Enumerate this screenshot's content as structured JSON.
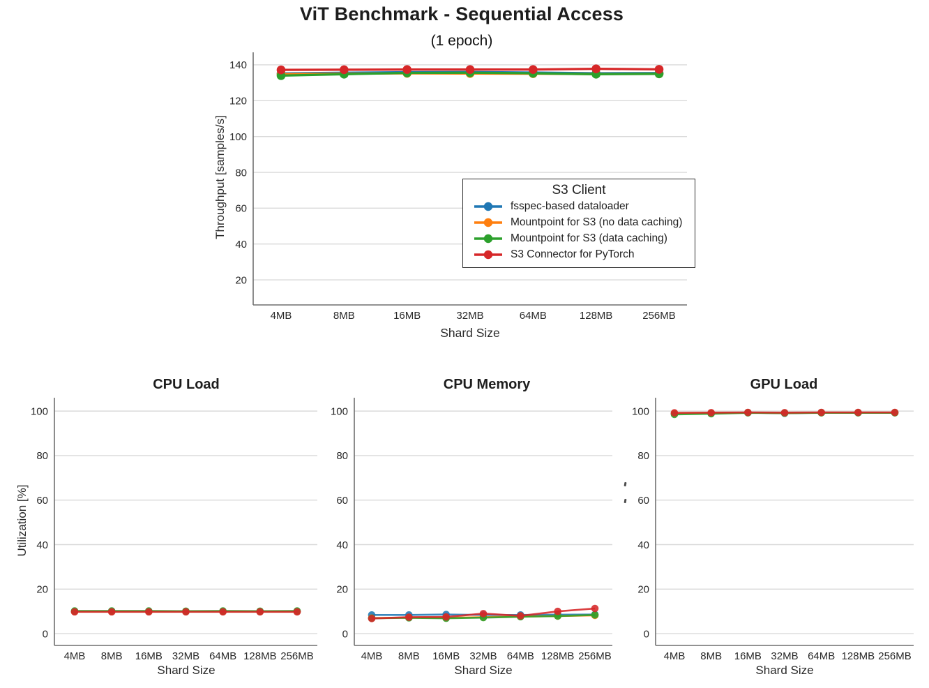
{
  "colors": {
    "blue": "#1f77b4",
    "orange": "#ff7f0e",
    "green": "#2ca02c",
    "red": "#d62728",
    "grid": "#d9d9d9",
    "spine": "#6f6f6f",
    "tick_text": "#2a2a2a"
  },
  "legend": {
    "title": "S3 Client"
  },
  "chart_data": [
    {
      "id": "throughput",
      "type": "line",
      "title": "ViT Benchmark - Sequential Access",
      "subtitle": "(1 epoch)",
      "categories": [
        "4MB",
        "8MB",
        "16MB",
        "32MB",
        "64MB",
        "128MB",
        "256MB"
      ],
      "xlabel": "Shard Size",
      "ylabel": "Throughput [samples/s]",
      "ylim": [
        6,
        147
      ],
      "yticks": [
        20,
        40,
        60,
        80,
        100,
        120,
        140
      ],
      "grid": true,
      "legend_position": "center-right",
      "series": [
        {
          "name": "fsspec-based dataloader",
          "color": "#1f77b4",
          "values": [
            135.2,
            135.6,
            135.9,
            136.0,
            135.7,
            135.3,
            135.4
          ]
        },
        {
          "name": "Mountpoint for S3 (no data caching)",
          "color": "#ff7f0e",
          "values": [
            134.8,
            135.1,
            135.3,
            135.2,
            135.1,
            134.9,
            135.0
          ]
        },
        {
          "name": "Mountpoint for S3 (data caching)",
          "color": "#2ca02c",
          "values": [
            134.0,
            134.8,
            135.5,
            135.6,
            135.3,
            134.8,
            135.0
          ]
        },
        {
          "name": "S3 Connector for PyTorch",
          "color": "#d62728",
          "values": [
            137.2,
            137.3,
            137.4,
            137.4,
            137.4,
            137.8,
            137.5
          ]
        }
      ]
    },
    {
      "id": "cpu-load",
      "type": "line",
      "title": "CPU Load",
      "categories": [
        "4MB",
        "8MB",
        "16MB",
        "32MB",
        "64MB",
        "128MB",
        "256MB"
      ],
      "xlabel": "Shard Size",
      "ylabel": "Utilization [%]",
      "ylim": [
        -5.3,
        106
      ],
      "yticks": [
        0,
        20,
        40,
        60,
        80,
        100
      ],
      "grid": true,
      "series": [
        {
          "name": "fsspec-based dataloader",
          "color": "#1f77b4",
          "values": [
            9.9,
            9.9,
            9.9,
            9.9,
            9.9,
            9.9,
            9.9
          ]
        },
        {
          "name": "Mountpoint for S3 (no data caching)",
          "color": "#ff7f0e",
          "values": [
            9.9,
            9.9,
            9.9,
            9.9,
            9.9,
            9.9,
            9.9
          ]
        },
        {
          "name": "Mountpoint for S3 (data caching)",
          "color": "#2ca02c",
          "values": [
            10.2,
            10.2,
            10.2,
            10.1,
            10.2,
            10.1,
            10.2
          ]
        },
        {
          "name": "S3 Connector for PyTorch",
          "color": "#d62728",
          "values": [
            9.8,
            9.8,
            9.8,
            9.8,
            9.8,
            9.8,
            9.8
          ]
        }
      ]
    },
    {
      "id": "cpu-memory",
      "type": "line",
      "title": "CPU Memory",
      "categories": [
        "4MB",
        "8MB",
        "16MB",
        "32MB",
        "64MB",
        "128MB",
        "256MB"
      ],
      "xlabel": "Shard Size",
      "ylabel": "",
      "ylim": [
        -5.3,
        106
      ],
      "yticks": [
        0,
        20,
        40,
        60,
        80,
        100
      ],
      "grid": true,
      "series": [
        {
          "name": "fsspec-based dataloader",
          "color": "#1f77b4",
          "values": [
            8.4,
            8.4,
            8.6,
            8.4,
            8.4,
            8.5,
            8.6
          ]
        },
        {
          "name": "Mountpoint for S3 (no data caching)",
          "color": "#ff7f0e",
          "values": [
            7.0,
            7.2,
            7.1,
            7.4,
            7.7,
            7.9,
            8.2
          ]
        },
        {
          "name": "Mountpoint for S3 (data caching)",
          "color": "#2ca02c",
          "values": [
            6.9,
            7.1,
            6.9,
            7.2,
            7.6,
            7.9,
            8.4
          ]
        },
        {
          "name": "S3 Connector for PyTorch",
          "color": "#d62728",
          "values": [
            6.8,
            7.4,
            7.5,
            9.0,
            8.0,
            10.0,
            11.3
          ]
        }
      ]
    },
    {
      "id": "gpu-load",
      "type": "line",
      "title": "GPU Load",
      "categories": [
        "4MB",
        "8MB",
        "16MB",
        "32MB",
        "64MB",
        "128MB",
        "256MB"
      ],
      "xlabel": "Shard Size",
      "ylabel": "",
      "ylim": [
        -5.3,
        106
      ],
      "yticks": [
        0,
        20,
        40,
        60,
        80,
        100
      ],
      "grid": true,
      "series": [
        {
          "name": "fsspec-based dataloader",
          "color": "#1f77b4",
          "values": [
            99.0,
            99.1,
            99.3,
            99.0,
            99.3,
            99.3,
            99.3
          ]
        },
        {
          "name": "Mountpoint for S3 (no data caching)",
          "color": "#ff7f0e",
          "values": [
            99.0,
            99.1,
            99.3,
            99.1,
            99.3,
            99.3,
            99.3
          ]
        },
        {
          "name": "Mountpoint for S3 (data caching)",
          "color": "#2ca02c",
          "values": [
            98.5,
            98.8,
            99.2,
            99.1,
            99.2,
            99.2,
            99.2
          ]
        },
        {
          "name": "S3 Connector for PyTorch",
          "color": "#d62728",
          "values": [
            99.2,
            99.3,
            99.4,
            99.3,
            99.4,
            99.4,
            99.4
          ]
        }
      ]
    }
  ]
}
